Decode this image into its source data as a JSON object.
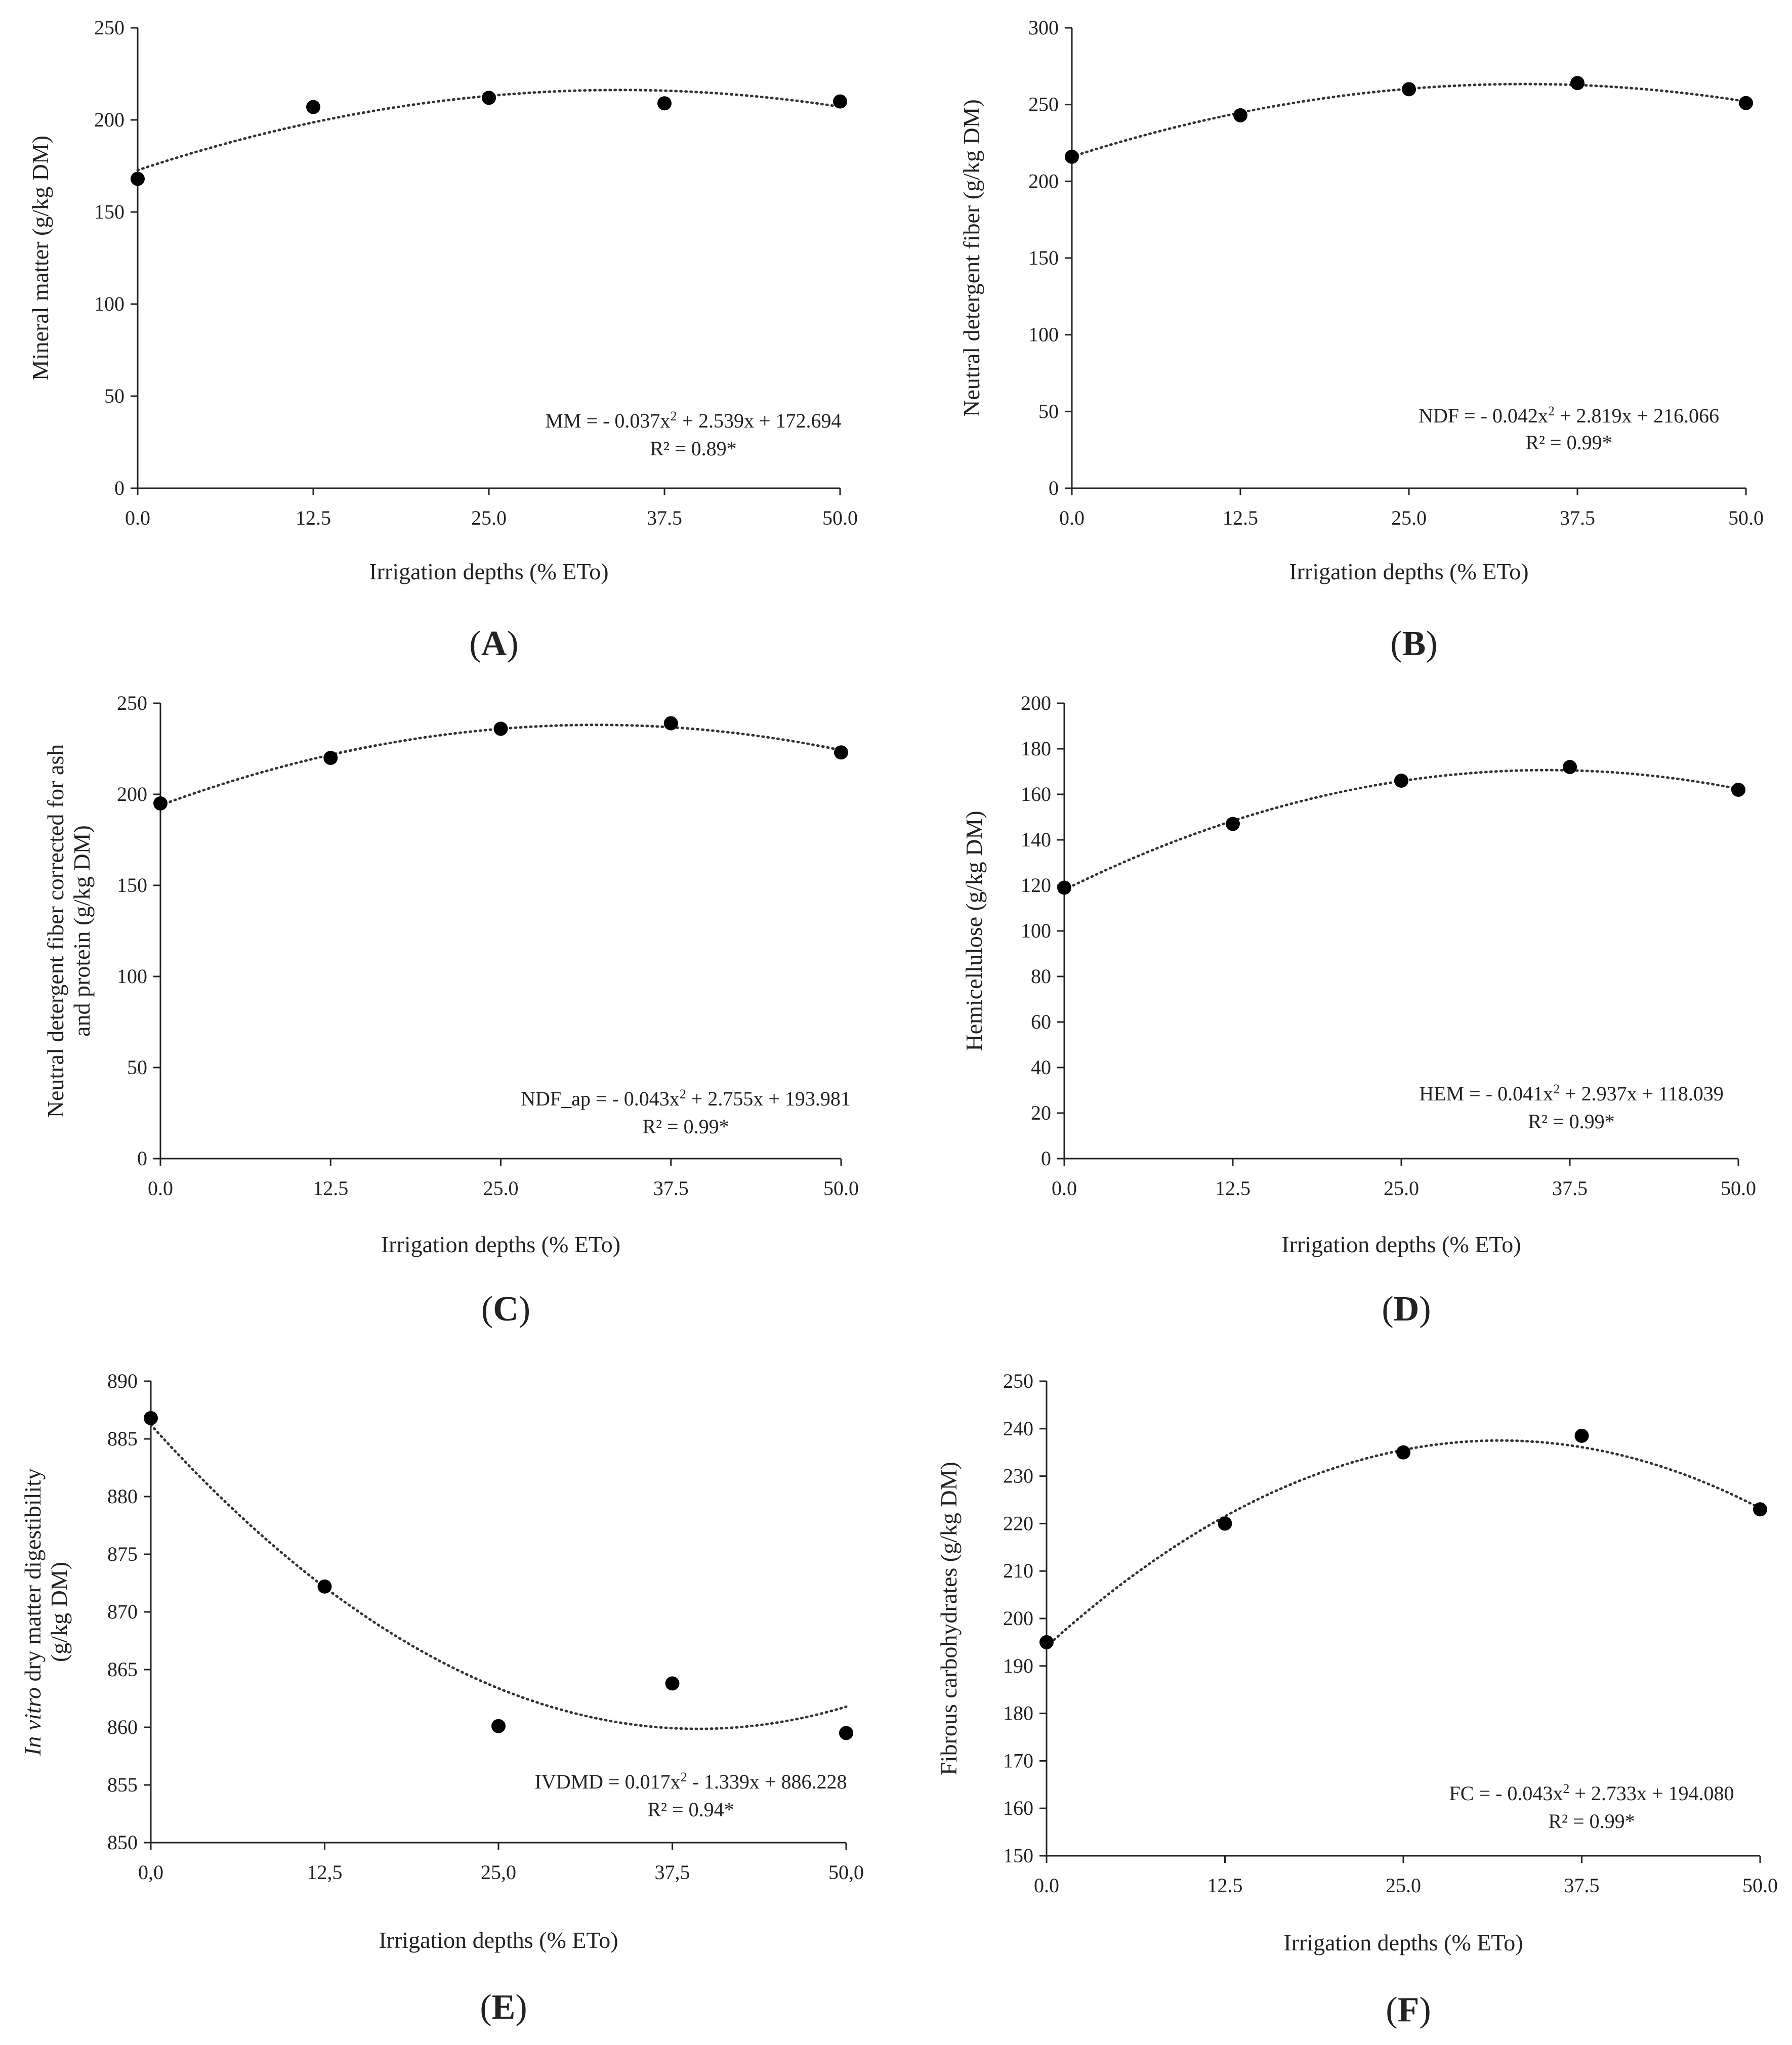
{
  "chart_data": [
    {
      "id": "A",
      "type": "scatter",
      "panel_label": "(A)",
      "panel_letter": "A",
      "xlabel": "Irrigation depths (% ETo)",
      "ylabel": [
        "Mineral matter (g/kg DM)"
      ],
      "ylabel_italic_prefix": "",
      "x": [
        0,
        12.5,
        25,
        37.5,
        50
      ],
      "y": [
        168,
        207,
        212,
        209,
        210
      ],
      "fit": {
        "a": -0.037,
        "b": 2.539,
        "c": 172.694
      },
      "equation": "MM = - 0.037x",
      "equation_tail": " + 2.539x + 172.694",
      "r2": "R² = 0.89*",
      "xticks": [
        0,
        12.5,
        25,
        37.5,
        50
      ],
      "xtick_labels": [
        "0.0",
        "12.5",
        "25.0",
        "37.5",
        "50.0"
      ],
      "yticks": [
        0,
        50,
        100,
        150,
        200,
        250
      ],
      "ylim": [
        0,
        250
      ],
      "xlim": [
        0,
        50
      ]
    },
    {
      "id": "B",
      "type": "scatter",
      "panel_label": "(B)",
      "panel_letter": "B",
      "xlabel": "Irrigation depths (% ETo)",
      "ylabel": [
        "Neutral detergent fiber (g/kg DM)"
      ],
      "ylabel_italic_prefix": "",
      "x": [
        0,
        12.5,
        25,
        37.5,
        50
      ],
      "y": [
        216,
        243,
        260,
        264,
        251
      ],
      "fit": {
        "a": -0.042,
        "b": 2.819,
        "c": 216.066
      },
      "equation": "NDF = - 0.042x",
      "equation_tail": " + 2.819x + 216.066",
      "r2": "R² = 0.99*",
      "xticks": [
        0,
        12.5,
        25,
        37.5,
        50
      ],
      "xtick_labels": [
        "0.0",
        "12.5",
        "25.0",
        "37.5",
        "50.0"
      ],
      "yticks": [
        0,
        50,
        100,
        150,
        200,
        250,
        300
      ],
      "ylim": [
        0,
        300
      ],
      "xlim": [
        0,
        50
      ]
    },
    {
      "id": "C",
      "type": "scatter",
      "panel_label": "(C)",
      "panel_letter": "C",
      "xlabel": "Irrigation depths (% ETo)",
      "ylabel": [
        "Neutral detergent fiber corrected for ash",
        "and protein (g/kg DM)"
      ],
      "ylabel_italic_prefix": "",
      "x": [
        0,
        12.5,
        25,
        37.5,
        50
      ],
      "y": [
        195,
        220,
        236,
        239,
        223
      ],
      "fit": {
        "a": -0.043,
        "b": 2.755,
        "c": 193.981
      },
      "equation": "NDF_ap = - 0.043x",
      "equation_tail": " + 2.755x + 193.981",
      "r2": "R² = 0.99*",
      "xticks": [
        0,
        12.5,
        25,
        37.5,
        50
      ],
      "xtick_labels": [
        "0.0",
        "12.5",
        "25.0",
        "37.5",
        "50.0"
      ],
      "yticks": [
        0,
        50,
        100,
        150,
        200,
        250
      ],
      "ylim": [
        0,
        250
      ],
      "xlim": [
        0,
        50
      ]
    },
    {
      "id": "D",
      "type": "scatter",
      "panel_label": "(D)",
      "panel_letter": "D",
      "xlabel": "Irrigation depths (% ETo)",
      "ylabel": [
        "Hemicellulose (g/kg DM)"
      ],
      "ylabel_italic_prefix": "",
      "x": [
        0,
        12.5,
        25,
        37.5,
        50
      ],
      "y": [
        119,
        147,
        166,
        172,
        162
      ],
      "fit": {
        "a": -0.041,
        "b": 2.937,
        "c": 118.039
      },
      "equation": "HEM = - 0.041x",
      "equation_tail": " + 2.937x + 118.039",
      "r2": "R² = 0.99*",
      "xticks": [
        0,
        12.5,
        25,
        37.5,
        50
      ],
      "xtick_labels": [
        "0.0",
        "12.5",
        "25.0",
        "37.5",
        "50.0"
      ],
      "yticks": [
        0,
        20,
        40,
        60,
        80,
        100,
        120,
        140,
        160,
        180,
        200
      ],
      "ylim": [
        0,
        200
      ],
      "xlim": [
        0,
        50
      ]
    },
    {
      "id": "E",
      "type": "scatter",
      "panel_label": "(E)",
      "panel_letter": "E",
      "xlabel": "Irrigation depths (% ETo)",
      "ylabel": [
        "dry matter digestibility",
        "(g/kg DM)"
      ],
      "ylabel_italic_prefix": "In vitro",
      "x": [
        0,
        12.5,
        25,
        37.5,
        50
      ],
      "y": [
        886.8,
        872.2,
        860.1,
        863.8,
        859.5
      ],
      "fit": {
        "a": 0.017,
        "b": -1.339,
        "c": 886.228
      },
      "equation": "IVDMD = 0.017x",
      "equation_tail": " - 1.339x + 886.228",
      "r2": "R² = 0.94*",
      "xticks": [
        0,
        12.5,
        25,
        37.5,
        50
      ],
      "xtick_labels": [
        "0,0",
        "12,5",
        "25,0",
        "37,5",
        "50,0"
      ],
      "yticks": [
        850,
        855,
        860,
        865,
        870,
        875,
        880,
        885,
        890
      ],
      "ylim": [
        850,
        890
      ],
      "xlim": [
        0,
        50
      ]
    },
    {
      "id": "F",
      "type": "scatter",
      "panel_label": "(F)",
      "panel_letter": "F",
      "xlabel": "Irrigation depths (% ETo)",
      "ylabel": [
        "Fibrous carbohydrates  (g/kg DM)"
      ],
      "ylabel_italic_prefix": "",
      "x": [
        0,
        12.5,
        25,
        37.5,
        50
      ],
      "y": [
        195,
        220,
        235,
        238.5,
        223
      ],
      "fit": {
        "a": -0.043,
        "b": 2.733,
        "c": 194.08
      },
      "equation": "FC = - 0.043x",
      "equation_tail": " + 2.733x + 194.080",
      "r2": "R² = 0.99*",
      "xticks": [
        0,
        12.5,
        25,
        37.5,
        50
      ],
      "xtick_labels": [
        "0.0",
        "12.5",
        "25.0",
        "37.5",
        "50.0"
      ],
      "yticks": [
        150,
        160,
        170,
        180,
        190,
        200,
        210,
        220,
        230,
        240,
        250
      ],
      "ylim": [
        150,
        250
      ],
      "xlim": [
        0,
        50
      ]
    }
  ]
}
